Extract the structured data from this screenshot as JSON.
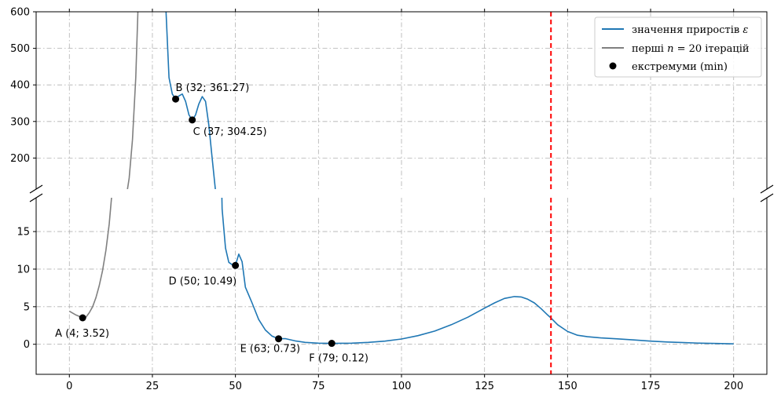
{
  "chart_data": {
    "type": "line",
    "broken_y_axis": true,
    "x_ticks": [
      0,
      25,
      50,
      75,
      100,
      125,
      150,
      175,
      200
    ],
    "xlim": [
      -10,
      210
    ],
    "upper_panel": {
      "ylim": [
        115,
        600
      ],
      "y_ticks": [
        200,
        300,
        400,
        500,
        600
      ]
    },
    "lower_panel": {
      "ylim": [
        -4,
        19.5
      ],
      "y_ticks": [
        0,
        5,
        10,
        15
      ]
    },
    "grid": true,
    "legend_placement": "top-right",
    "legend": [
      {
        "id": "main",
        "label_text": "значення приростів ",
        "label_math": "ε"
      },
      {
        "id": "first",
        "label_text_before": "перші ",
        "label_math": "n",
        "label_text_after": " = 20 ітерацій"
      },
      {
        "id": "extrema",
        "label_text": "екстремуми (min)"
      }
    ],
    "series": [
      {
        "id": "first",
        "color": "#808080",
        "x": [
          0,
          2,
          4,
          5,
          6,
          7,
          8,
          9,
          10,
          11,
          12,
          13,
          14,
          15,
          16,
          17,
          18,
          19,
          20,
          21,
          22
        ],
        "y": [
          4.4,
          3.9,
          3.52,
          3.6,
          4.2,
          5.0,
          6.2,
          7.8,
          9.8,
          12.5,
          16.0,
          21.0,
          28.0,
          38.0,
          55.0,
          85.0,
          145.0,
          250.0,
          420.0,
          700.0,
          1000.0
        ]
      },
      {
        "id": "main",
        "color": "#1f77b4",
        "x": [
          28,
          29,
          30,
          31,
          32,
          33,
          34,
          35,
          36,
          37,
          38,
          39,
          40,
          41,
          42,
          43,
          44,
          45,
          46,
          47,
          48,
          49,
          50,
          51,
          52,
          53,
          55,
          57,
          59,
          61,
          63,
          65,
          68,
          71,
          75,
          79,
          85,
          90,
          95,
          100,
          105,
          110,
          115,
          120,
          125,
          128,
          131,
          134,
          136,
          138,
          140,
          142,
          144,
          145,
          147,
          150,
          153,
          156,
          160,
          165,
          170,
          175,
          180,
          185,
          190,
          195,
          200
        ],
        "y": [
          900,
          620,
          420,
          375,
          361.27,
          370,
          375,
          355,
          318,
          304.25,
          318,
          348,
          368,
          355,
          290,
          200,
          110,
          40,
          18,
          12.8,
          10.9,
          10.6,
          10.49,
          12.0,
          11.0,
          7.6,
          5.5,
          3.3,
          1.9,
          1.1,
          0.73,
          0.75,
          0.45,
          0.25,
          0.15,
          0.12,
          0.15,
          0.25,
          0.42,
          0.7,
          1.15,
          1.75,
          2.6,
          3.6,
          4.8,
          5.5,
          6.1,
          6.35,
          6.3,
          6.0,
          5.5,
          4.75,
          3.9,
          3.5,
          2.6,
          1.7,
          1.2,
          1.0,
          0.85,
          0.72,
          0.57,
          0.42,
          0.3,
          0.22,
          0.15,
          0.1,
          0.05
        ]
      }
    ],
    "extrema": [
      {
        "label": "A",
        "x": 4,
        "y": 3.52,
        "text": "A (4; 3.52)"
      },
      {
        "label": "B",
        "x": 32,
        "y": 361.27,
        "text": "B (32; 361.27)"
      },
      {
        "label": "C",
        "x": 37,
        "y": 304.25,
        "text": "C (37; 304.25)"
      },
      {
        "label": "D",
        "x": 50,
        "y": 10.49,
        "text": "D (50; 10.49)"
      },
      {
        "label": "E",
        "x": 63,
        "y": 0.73,
        "text": "E (63; 0.73)"
      },
      {
        "label": "F",
        "x": 79,
        "y": 0.12,
        "text": "F (79; 0.12)"
      }
    ],
    "vertical_line": {
      "x": 145,
      "color": "#ff0000",
      "style": "dashed"
    }
  }
}
